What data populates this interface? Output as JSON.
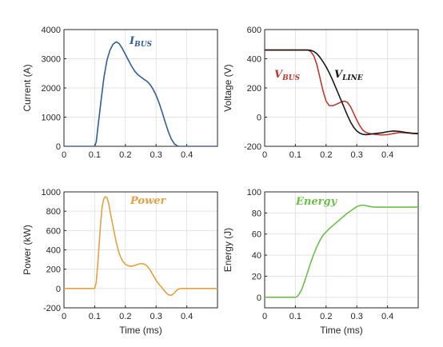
{
  "chart_data": [
    {
      "type": "line",
      "xlabel": "",
      "ylabel": "Current (A)",
      "xlim": [
        0,
        0.5
      ],
      "ylim": [
        0,
        4000
      ],
      "xticks": [
        "0",
        "0.1",
        "0.2",
        "0.3",
        "0.4"
      ],
      "yticks": [
        "0",
        "1000",
        "2000",
        "3000",
        "4000"
      ],
      "grid": true,
      "series": [
        {
          "name": "I_BUS",
          "color": "#2f5f96",
          "x": [
            0,
            0.1,
            0.105,
            0.11,
            0.12,
            0.13,
            0.14,
            0.15,
            0.16,
            0.17,
            0.18,
            0.19,
            0.2,
            0.21,
            0.22,
            0.23,
            0.24,
            0.25,
            0.26,
            0.27,
            0.28,
            0.29,
            0.3,
            0.31,
            0.32,
            0.33,
            0.34,
            0.35,
            0.36,
            0.37,
            0.375,
            0.38,
            0.4,
            0.45,
            0.5
          ],
          "y": [
            0,
            0,
            150,
            600,
            1500,
            2350,
            2950,
            3300,
            3500,
            3580,
            3520,
            3350,
            3150,
            2950,
            2750,
            2580,
            2460,
            2380,
            2300,
            2230,
            2120,
            1960,
            1750,
            1480,
            1160,
            820,
            500,
            240,
            80,
            10,
            0,
            0,
            0,
            0,
            0
          ]
        }
      ],
      "annotations": [
        {
          "main": "I",
          "sub": "BUS",
          "color": "#2f5f96"
        }
      ]
    },
    {
      "type": "line",
      "xlabel": "",
      "ylabel": "Voltage (V)",
      "xlim": [
        0,
        0.5
      ],
      "ylim": [
        -200,
        600
      ],
      "xticks": [
        "0",
        "0.1",
        "0.2",
        "0.3",
        "0.4"
      ],
      "yticks": [
        "-200",
        "0",
        "200",
        "400",
        "600"
      ],
      "grid": true,
      "series": [
        {
          "name": "V_BUS",
          "color": "#c0392b",
          "x": [
            0,
            0.1,
            0.14,
            0.15,
            0.16,
            0.17,
            0.18,
            0.19,
            0.2,
            0.21,
            0.22,
            0.23,
            0.24,
            0.25,
            0.26,
            0.27,
            0.28,
            0.29,
            0.3,
            0.31,
            0.32,
            0.33,
            0.34,
            0.35,
            0.36,
            0.38,
            0.4,
            0.42,
            0.44,
            0.46,
            0.48,
            0.5
          ],
          "y": [
            460,
            460,
            460,
            450,
            420,
            360,
            270,
            180,
            110,
            80,
            78,
            85,
            95,
            105,
            110,
            100,
            70,
            25,
            -20,
            -60,
            -90,
            -105,
            -112,
            -115,
            -118,
            -122,
            -120,
            -112,
            -105,
            -108,
            -112,
            -115
          ]
        },
        {
          "name": "V_LINE",
          "color": "#1a1a1a",
          "x": [
            0,
            0.1,
            0.14,
            0.15,
            0.16,
            0.17,
            0.18,
            0.19,
            0.2,
            0.21,
            0.22,
            0.23,
            0.24,
            0.25,
            0.26,
            0.27,
            0.28,
            0.29,
            0.3,
            0.31,
            0.32,
            0.33,
            0.34,
            0.35,
            0.36,
            0.38,
            0.4,
            0.42,
            0.44,
            0.46,
            0.48,
            0.5
          ],
          "y": [
            460,
            460,
            460,
            458,
            450,
            435,
            410,
            380,
            345,
            305,
            260,
            210,
            160,
            110,
            60,
            10,
            -35,
            -70,
            -95,
            -110,
            -118,
            -120,
            -118,
            -115,
            -112,
            -108,
            -100,
            -95,
            -98,
            -105,
            -110,
            -112
          ]
        }
      ],
      "annotations": [
        {
          "main": "V",
          "sub": "BUS",
          "color": "#c0392b"
        },
        {
          "main": "V",
          "sub": "LINE",
          "color": "#1a1a1a"
        }
      ]
    },
    {
      "type": "line",
      "xlabel": "Time (ms)",
      "ylabel": "Power (kW)",
      "xlim": [
        0,
        0.5
      ],
      "ylim": [
        -200,
        1000
      ],
      "xticks": [
        "0",
        "0.1",
        "0.2",
        "0.3",
        "0.4"
      ],
      "yticks": [
        "-200",
        "0",
        "200",
        "400",
        "600",
        "800",
        "1000"
      ],
      "grid": true,
      "series": [
        {
          "name": "Power",
          "color": "#e8a040",
          "x": [
            0,
            0.1,
            0.105,
            0.11,
            0.115,
            0.12,
            0.125,
            0.13,
            0.135,
            0.14,
            0.145,
            0.15,
            0.16,
            0.17,
            0.18,
            0.19,
            0.2,
            0.21,
            0.22,
            0.23,
            0.24,
            0.25,
            0.26,
            0.27,
            0.28,
            0.29,
            0.3,
            0.31,
            0.32,
            0.33,
            0.34,
            0.35,
            0.36,
            0.37,
            0.38,
            0.4,
            0.45,
            0.5
          ],
          "y": [
            0,
            0,
            60,
            250,
            480,
            700,
            860,
            930,
            950,
            940,
            890,
            800,
            640,
            480,
            360,
            290,
            250,
            235,
            230,
            238,
            250,
            258,
            255,
            235,
            195,
            140,
            85,
            40,
            5,
            -35,
            -65,
            -70,
            -45,
            -10,
            0,
            0,
            0,
            0
          ]
        }
      ],
      "annotations": [
        {
          "main": "Power",
          "color": "#e8a040"
        }
      ]
    },
    {
      "type": "line",
      "xlabel": "Time (ms)",
      "ylabel": "Energy (J)",
      "xlim": [
        0,
        0.5
      ],
      "ylim": [
        -10,
        100
      ],
      "xticks": [
        "0",
        "0.1",
        "0.2",
        "0.3",
        "0.4"
      ],
      "yticks": [
        "0",
        "20",
        "40",
        "60",
        "80",
        "100"
      ],
      "grid": true,
      "series": [
        {
          "name": "Energy",
          "color": "#6cbf4a",
          "x": [
            0,
            0.1,
            0.105,
            0.11,
            0.12,
            0.13,
            0.14,
            0.15,
            0.16,
            0.17,
            0.18,
            0.19,
            0.2,
            0.21,
            0.22,
            0.23,
            0.24,
            0.25,
            0.26,
            0.27,
            0.28,
            0.29,
            0.3,
            0.31,
            0.32,
            0.33,
            0.34,
            0.35,
            0.36,
            0.4,
            0.45,
            0.5
          ],
          "y": [
            0,
            0,
            0.5,
            2,
            7,
            15,
            24,
            33,
            41,
            48,
            54,
            59,
            62,
            65,
            67.5,
            70,
            72.5,
            75,
            77.5,
            80,
            82,
            84,
            86,
            87,
            87.5,
            87,
            86.2,
            85.8,
            85.5,
            85.5,
            85.5,
            85.5
          ]
        }
      ],
      "annotations": [
        {
          "main": "Energy",
          "color": "#6cbf4a"
        }
      ]
    }
  ]
}
